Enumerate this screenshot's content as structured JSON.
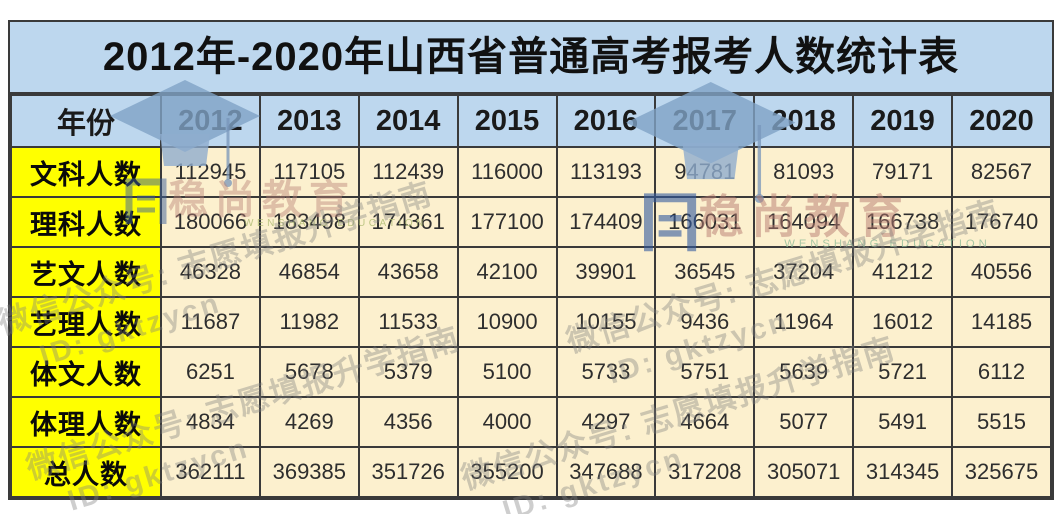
{
  "title": "2012年-2020年山西省普通高考报考人数统计表",
  "chart_data": {
    "type": "table",
    "title": "2012年-2020年山西省普通高考报考人数统计表",
    "columns": [
      "年份",
      "2012",
      "2013",
      "2014",
      "2015",
      "2016",
      "2017",
      "2018",
      "2019",
      "2020"
    ],
    "categories": [
      "2012",
      "2013",
      "2014",
      "2015",
      "2016",
      "2017",
      "2018",
      "2019",
      "2020"
    ],
    "series": [
      {
        "name": "文科人数",
        "values": [
          112945,
          117105,
          112439,
          116000,
          113193,
          94781,
          81093,
          79171,
          82567
        ]
      },
      {
        "name": "理科人数",
        "values": [
          180066,
          183498,
          174361,
          177100,
          174409,
          166031,
          164094,
          166738,
          176740
        ]
      },
      {
        "name": "艺文人数",
        "values": [
          46328,
          46854,
          43658,
          42100,
          39901,
          36545,
          37204,
          41212,
          40556
        ]
      },
      {
        "name": "艺理人数",
        "values": [
          11687,
          11982,
          11533,
          10900,
          10155,
          9436,
          11964,
          16012,
          14185
        ]
      },
      {
        "name": "体文人数",
        "values": [
          6251,
          5678,
          5379,
          5100,
          5733,
          5751,
          5639,
          5721,
          6112
        ]
      },
      {
        "name": "体理人数",
        "values": [
          4834,
          4269,
          4356,
          4000,
          4297,
          4664,
          5077,
          5491,
          5515
        ]
      },
      {
        "name": "总人数",
        "values": [
          362111,
          369385,
          351726,
          355200,
          347688,
          317208,
          305071,
          314345,
          325675
        ]
      }
    ]
  },
  "watermarks": {
    "brand_name": "稳尚教育",
    "brand_subtitle": "WENSHANG EDUCATION",
    "wechat_line": "微信公众号: 志愿填报升学指南",
    "id_line": "ID: gktzycn"
  },
  "colors": {
    "header_bg": "#BDD7EE",
    "label_bg": "#FFFF00",
    "cell_bg": "#FCF0CE",
    "border": "#3a3a3a"
  }
}
